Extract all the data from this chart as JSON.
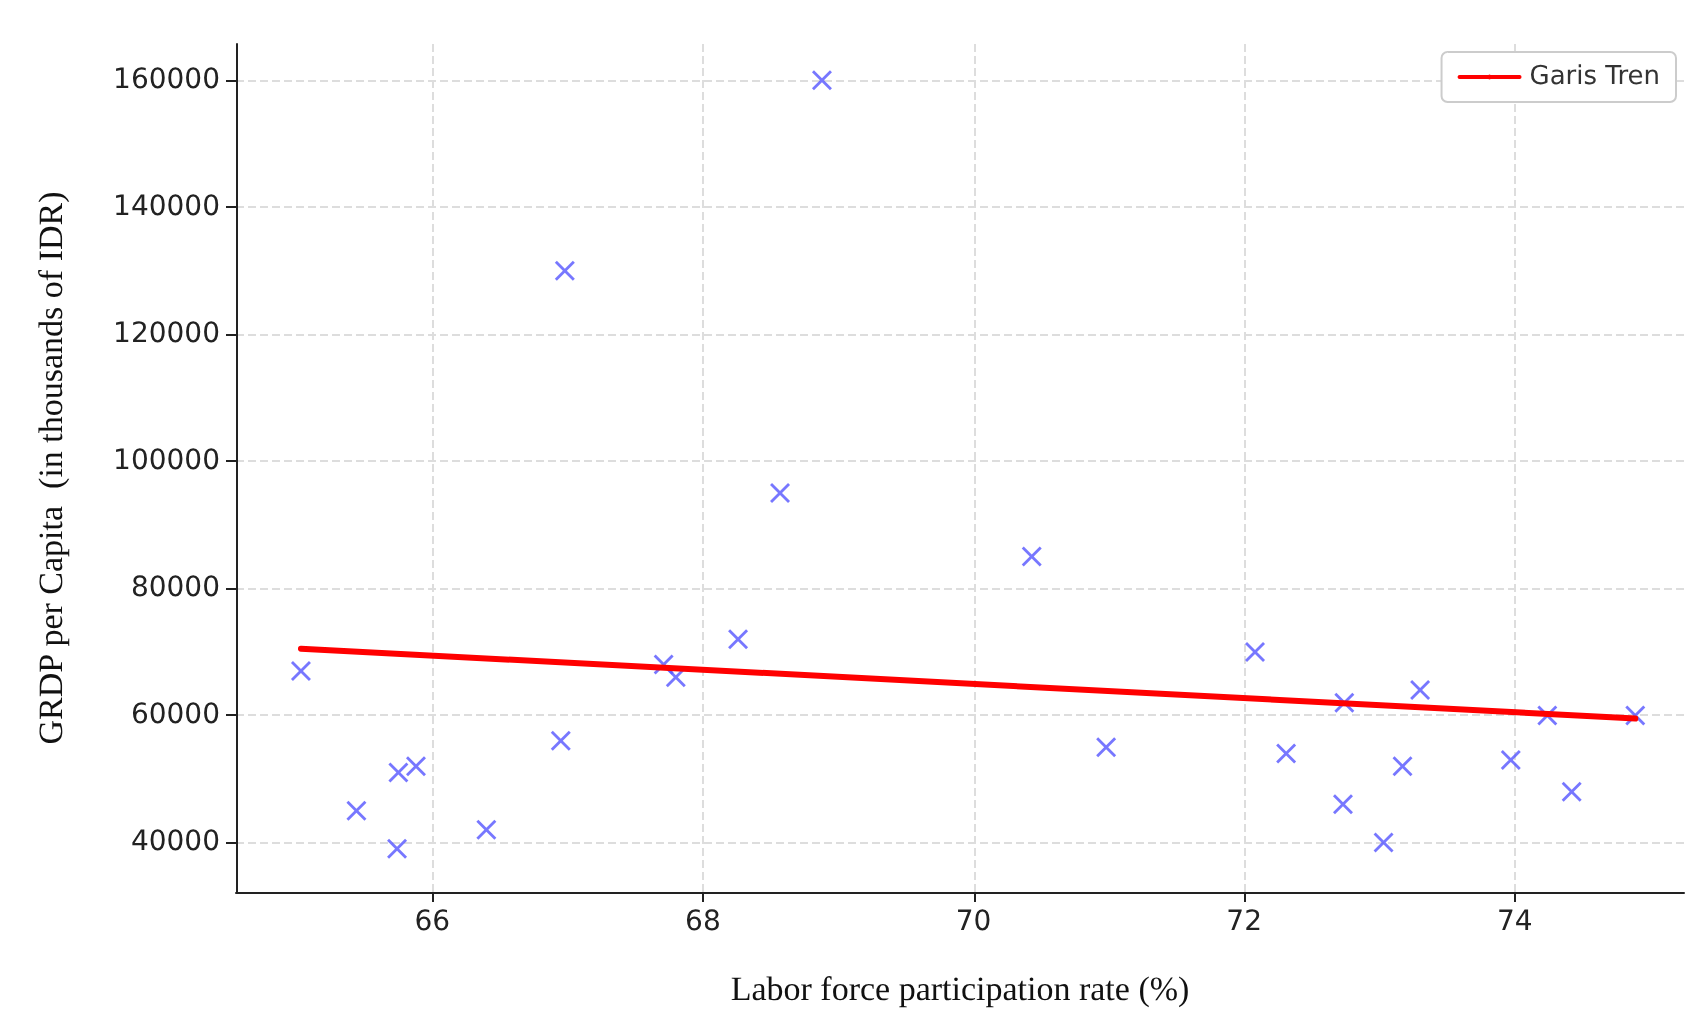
{
  "chart_data": {
    "type": "scatter",
    "xlabel": "Labor force participation rate (%)",
    "ylabel": "GRDP per Capita  (in thousands of IDR)",
    "xlim": [
      64.55,
      75.25
    ],
    "ylim": [
      32200,
      165700
    ],
    "xticks": [
      66,
      68,
      70,
      72,
      74
    ],
    "yticks": [
      40000,
      60000,
      80000,
      100000,
      120000,
      140000,
      160000
    ],
    "grid": true,
    "legend": "top right",
    "series": [
      {
        "marker": "cross",
        "color": "#5555ff",
        "x": [
          65.03,
          65.44,
          65.75,
          65.88,
          65.74,
          66.4,
          66.98,
          66.95,
          67.71,
          67.8,
          68.26,
          68.57,
          68.88,
          70.43,
          70.98,
          72.08,
          72.31,
          72.74,
          72.73,
          73.03,
          73.17,
          73.3,
          73.97,
          74.24,
          74.42,
          74.89
        ],
        "values": [
          67000,
          45000,
          51000,
          52000,
          39000,
          42000,
          130000,
          56000,
          68000,
          66000,
          72000,
          95000,
          160000,
          85000,
          55000,
          70000,
          54000,
          62000,
          46000,
          40000,
          52000,
          64000,
          53000,
          60000,
          48000,
          60000
        ]
      },
      {
        "type": "line",
        "marker": "none",
        "name": "Garis Tren",
        "color": "#ff0000",
        "x": [
          65.03,
          74.89
        ],
        "values": [
          70500,
          59500
        ]
      }
    ]
  }
}
